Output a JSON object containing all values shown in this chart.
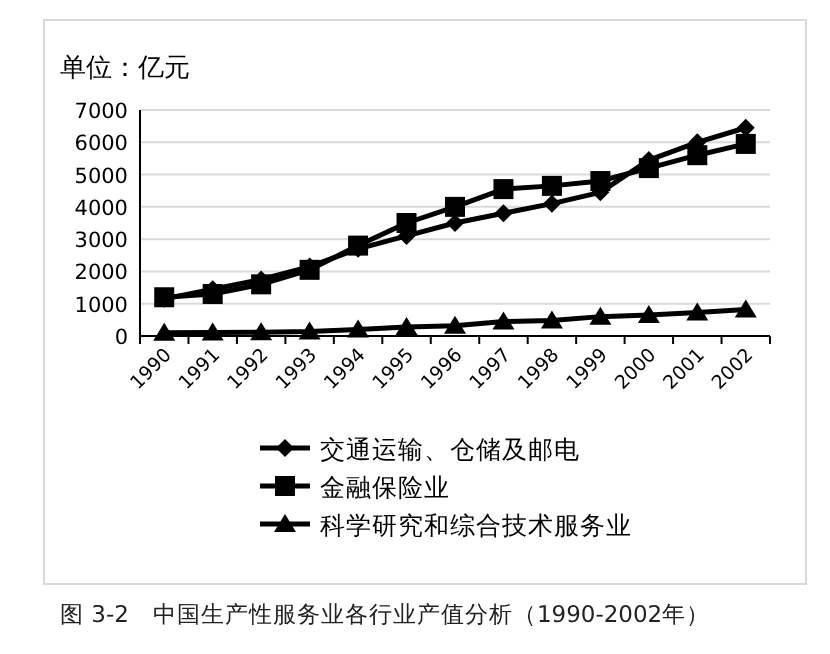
{
  "chart_data": {
    "type": "line",
    "title": "单位：亿元",
    "categories": [
      "1990",
      "1991",
      "1992",
      "1993",
      "1994",
      "1995",
      "1996",
      "1997",
      "1998",
      "1999",
      "2000",
      "2001",
      "2002"
    ],
    "series": [
      {
        "name": "交通运输、仓储及邮电",
        "color": "#000000",
        "marker": "diamond",
        "values": [
          1150,
          1450,
          1750,
          2150,
          2700,
          3100,
          3500,
          3800,
          4100,
          4450,
          5450,
          6000,
          6450
        ]
      },
      {
        "name": "金融保险业",
        "color": "#000000",
        "marker": "square",
        "values": [
          1200,
          1300,
          1600,
          2050,
          2800,
          3500,
          4000,
          4550,
          4650,
          4800,
          5200,
          5600,
          5950
        ]
      },
      {
        "name": "科学研究和综合技术服务业",
        "color": "#000000",
        "marker": "triangle",
        "values": [
          100,
          110,
          120,
          140,
          200,
          280,
          320,
          450,
          480,
          600,
          650,
          730,
          820
        ]
      }
    ],
    "ylim": [
      0,
      7000
    ],
    "yticks": [
      0,
      1000,
      2000,
      3000,
      4000,
      5000,
      6000,
      7000
    ],
    "grid": "y",
    "legend": "bottom",
    "line_style": "solid",
    "annotations": [
      "图 3-2　中国生产性服务业各行业产值分析（1990-2002年）"
    ]
  }
}
